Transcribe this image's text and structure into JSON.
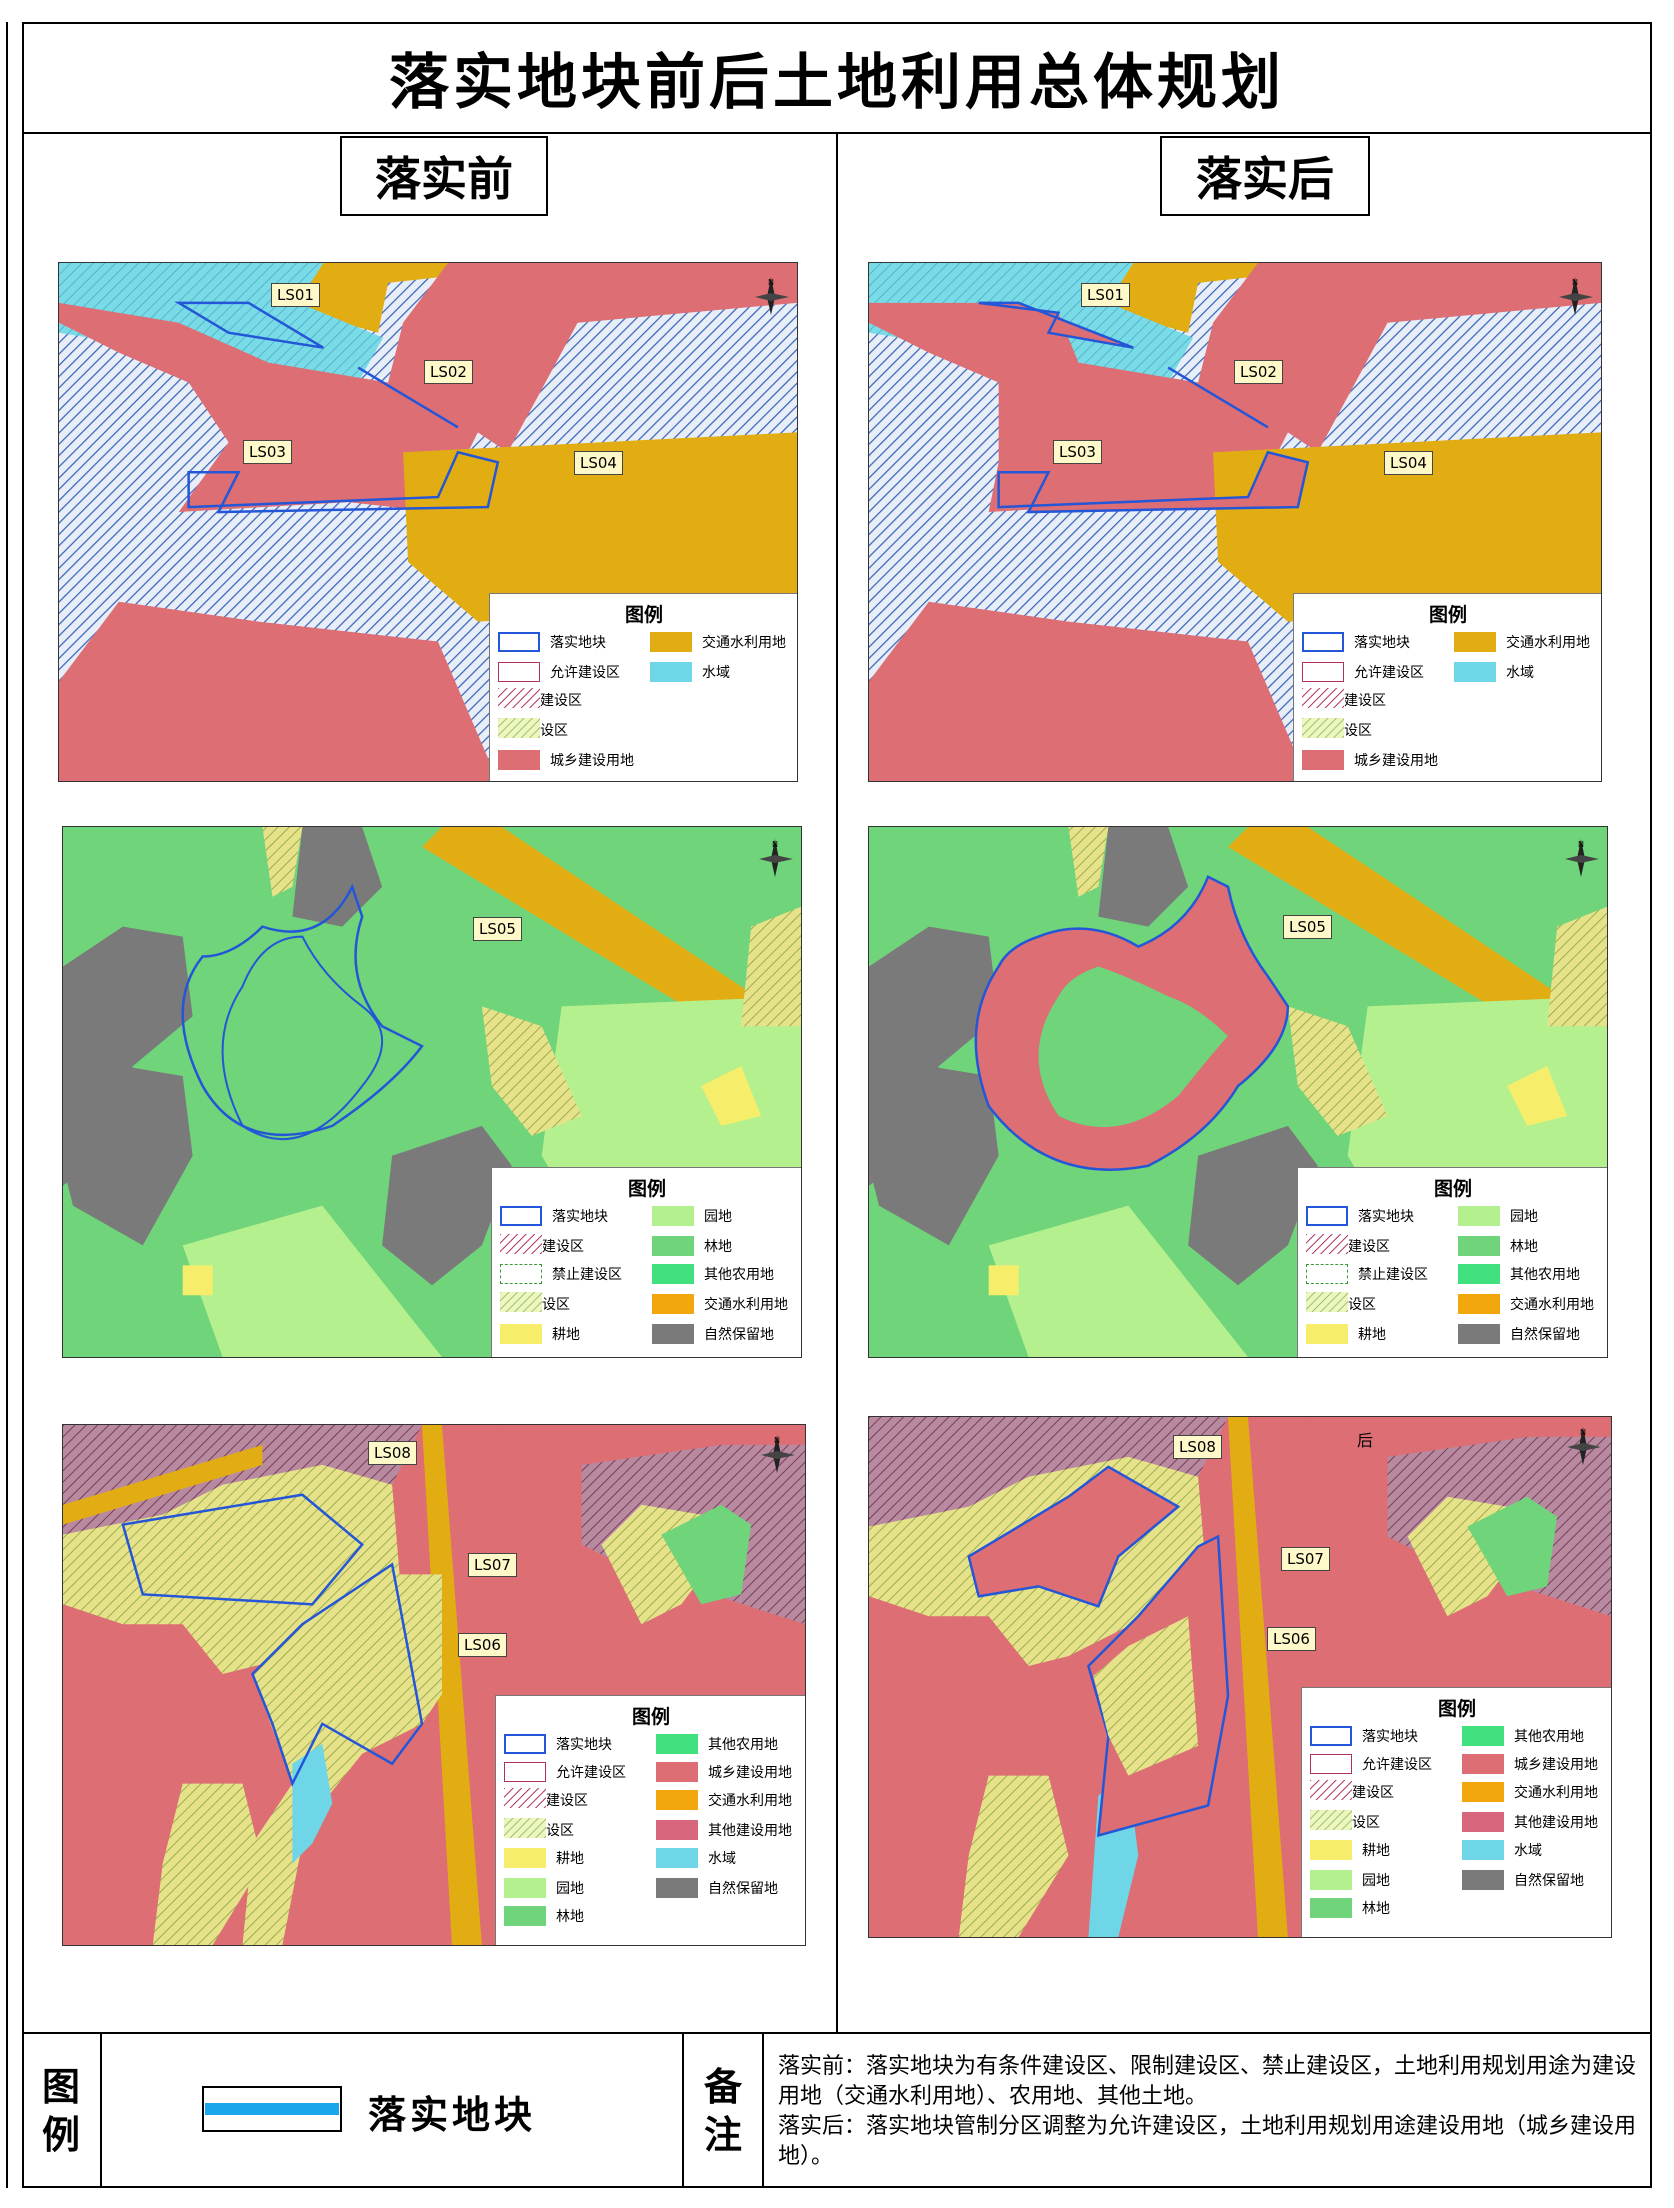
{
  "title": "落实地块前后土地利用总体规划",
  "columns": {
    "before": "落实前",
    "after": "落实后"
  },
  "legend_title": "图例",
  "map_labels": {
    "LS01": "LS01",
    "LS02": "LS02",
    "LS03": "LS03",
    "LS04": "LS04",
    "LS05": "LS05",
    "LS06": "LS06",
    "LS07": "LS07",
    "LS08": "LS08"
  },
  "stray_label": "后",
  "legend1": [
    "落实地块",
    "交通水利用地",
    "允许建设区",
    "水域",
    "有条件建设区",
    "限制建设区",
    "城乡建设用地"
  ],
  "legend2": [
    "落实地块",
    "园地",
    "有条件建设区",
    "林地",
    "禁止建设区",
    "其他农用地",
    "限制建设区",
    "交通水利用地",
    "耕地",
    "自然保留地"
  ],
  "legend3": [
    "落实地块",
    "其他农用地",
    "允许建设区",
    "城乡建设用地",
    "有条件建设区",
    "交通水利用地",
    "限制建设区",
    "其他建设用地",
    "耕地",
    "水域",
    "园地",
    "自然保留地",
    "林地"
  ],
  "footer": {
    "legend_vertical": [
      "图",
      "例"
    ],
    "legend_item": "落实地块",
    "notes_vertical": [
      "备",
      "注"
    ],
    "note_before": "落实前：落实地块为有条件建设区、限制建设区、禁止建设区，土地利用规划用途为建设用地（交通水利用地）、农用地、其他土地。",
    "note_after": "落实后：落实地块管制分区调整为允许建设区，土地利用规划用途建设用地（城乡建设用地）。"
  },
  "colors": {
    "urban": "#dc6e74",
    "transport": "#e2ad12",
    "water": "#6fd6e8",
    "forest": "#6fd47a",
    "garden": "#b5f08f",
    "farmland": "#f6ee6a",
    "natural": "#7a7a7a",
    "otherfarm": "#41e07e",
    "otherbuild": "#d8677e",
    "parcel": "#2456d8"
  }
}
